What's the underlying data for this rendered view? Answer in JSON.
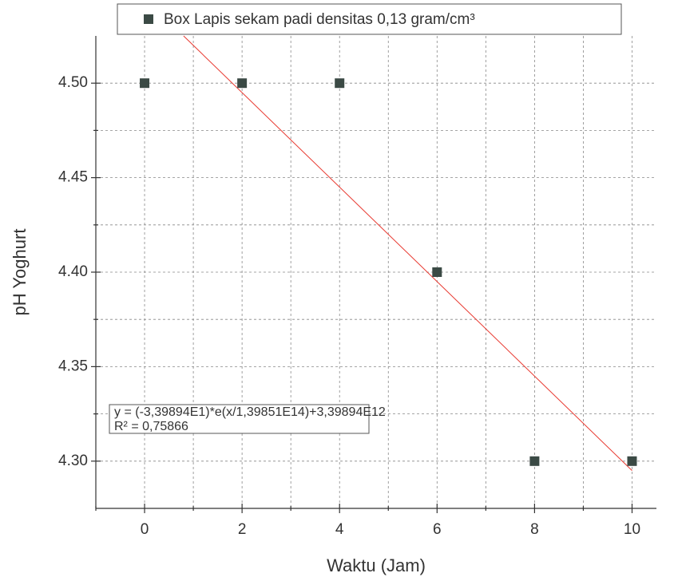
{
  "chart_data": {
    "type": "scatter",
    "x_label": "Waktu (Jam)",
    "y_label": "pH Yoghurt",
    "series": [
      {
        "name": "Box Lapis sekam padi densitas 0,13 gram/cm³",
        "color": "#3b4a45",
        "x": [
          0,
          2,
          4,
          6,
          8,
          10
        ],
        "values": [
          4.5,
          4.5,
          4.5,
          4.4,
          4.3,
          4.3
        ]
      }
    ],
    "fit": {
      "color": "#e8382f",
      "x": [
        0.8,
        10
      ],
      "values": [
        4.525,
        4.295
      ]
    },
    "annotation": [
      "y = (-3,39894E1)*e(x/1,39851E14)+3,39894E12",
      "R² = 0,75866"
    ],
    "xlim": [
      -1,
      10.5
    ],
    "ylim": [
      4.275,
      4.525
    ],
    "xticks": [
      0,
      2,
      4,
      6,
      8,
      10
    ],
    "yticks": [
      {
        "value": 4.3,
        "label": "4.30"
      },
      {
        "value": 4.35,
        "label": "4.35"
      },
      {
        "value": 4.4,
        "label": "4.40"
      },
      {
        "value": 4.45,
        "label": "4.45"
      },
      {
        "value": 4.5,
        "label": "4.50"
      }
    ],
    "minor_xticks": [
      -1,
      1,
      3,
      5,
      7,
      9
    ],
    "minor_yticks": [
      4.325,
      4.375,
      4.425,
      4.475
    ],
    "grid": true
  }
}
